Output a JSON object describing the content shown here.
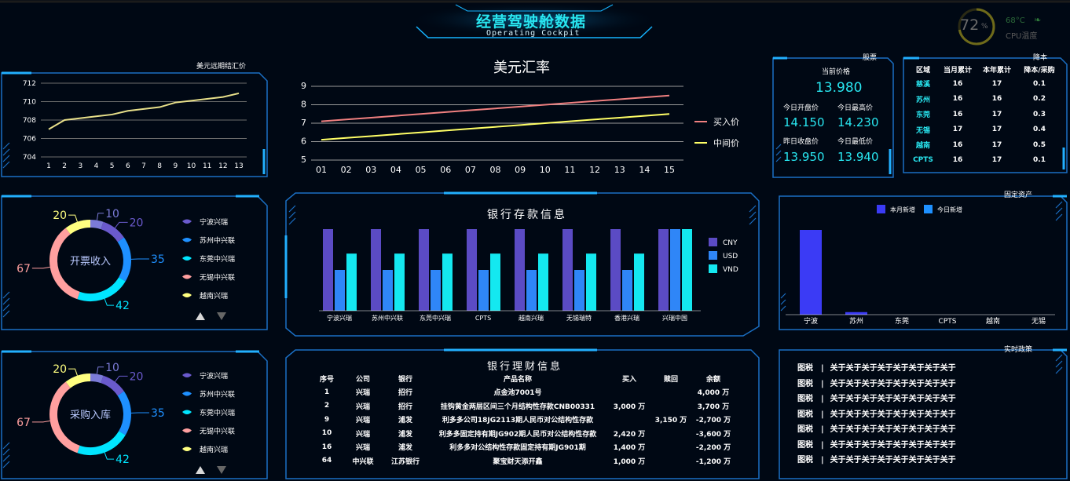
{
  "header": {
    "title": "经营驾驶舱数据",
    "subtitle": "Operating Cockpit"
  },
  "cpu": {
    "percent": "72",
    "percent_unit": "%",
    "temp": "68°C",
    "temp_label": "CPU温度",
    "level": 0.72
  },
  "panel_titles": {
    "forward": "美元远期结汇价",
    "stock": "股票",
    "reduce": "降本",
    "fixed_assets": "固定资产",
    "policy": "实时政策",
    "deposit": "银行存款信息",
    "wealth": "银行理财信息"
  },
  "chart_data": [
    {
      "id": "forward",
      "type": "line",
      "title": "美元远期结汇价",
      "x": [
        "1",
        "2",
        "3",
        "4",
        "5",
        "6",
        "7",
        "8",
        "9",
        "10",
        "11",
        "12",
        "13"
      ],
      "series": [
        {
          "values": [
            707.0,
            708.0,
            708.2,
            708.4,
            708.6,
            709.0,
            709.2,
            709.4,
            709.9,
            710.1,
            710.3,
            710.5,
            710.9
          ],
          "color": "#e8e08a"
        }
      ],
      "yticks": [
        704,
        706,
        708,
        710,
        712
      ],
      "ylim": [
        704,
        712
      ]
    },
    {
      "id": "usd",
      "type": "line",
      "title": "美元汇率",
      "x": [
        "01",
        "02",
        "03",
        "04",
        "05",
        "06",
        "07",
        "08",
        "09",
        "10",
        "11",
        "12",
        "13",
        "14",
        "15"
      ],
      "series": [
        {
          "name": "买入价",
          "values": [
            7.1,
            7.2,
            7.3,
            7.4,
            7.5,
            7.6,
            7.7,
            7.8,
            7.9,
            8.0,
            8.1,
            8.2,
            8.3,
            8.4,
            8.5
          ],
          "color": "#f08080"
        },
        {
          "name": "中间价",
          "values": [
            6.1,
            6.2,
            6.3,
            6.4,
            6.5,
            6.6,
            6.7,
            6.8,
            6.9,
            7.0,
            7.1,
            7.2,
            7.3,
            7.4,
            7.5
          ],
          "color": "#ffff66"
        }
      ],
      "yticks": [
        5,
        6,
        7,
        8,
        9
      ],
      "ylim": [
        5,
        9
      ]
    },
    {
      "id": "invoice",
      "type": "pie",
      "center_label": "开票收入",
      "slices": [
        {
          "name": "宁波兴瑞",
          "value": 20,
          "color": "#6a5acd"
        },
        {
          "name": "苏州中兴联",
          "value": 35,
          "color": "#1e90ff"
        },
        {
          "name": "东莞中兴瑞",
          "value": 42,
          "color": "#00e5ff"
        },
        {
          "name": "无锡中兴联",
          "value": 67,
          "color": "#ff9f9f"
        },
        {
          "name": "越南兴瑞",
          "value": 20,
          "color": "#ffff80"
        },
        {
          "name": "",
          "value": 10,
          "color": "#7b7bd8"
        }
      ]
    },
    {
      "id": "purchase",
      "type": "pie",
      "center_label": "采购入库",
      "slices": [
        {
          "name": "宁波兴瑞",
          "value": 20,
          "color": "#6a5acd"
        },
        {
          "name": "苏州中兴联",
          "value": 35,
          "color": "#1e90ff"
        },
        {
          "name": "东莞中兴瑞",
          "value": 42,
          "color": "#00e5ff"
        },
        {
          "name": "无锡中兴联",
          "value": 67,
          "color": "#ff9f9f"
        },
        {
          "name": "越南兴瑞",
          "value": 20,
          "color": "#ffff80"
        },
        {
          "name": "",
          "value": 10,
          "color": "#7b7bd8"
        }
      ]
    },
    {
      "id": "deposit",
      "type": "bar",
      "title": "银行存款信息",
      "categories": [
        "宁波兴瑞",
        "苏州中兴联",
        "东莞中兴瑞",
        "CPTS",
        "越南兴瑞",
        "无锡瑞特",
        "香港兴瑞",
        "兴瑞中国"
      ],
      "series": [
        {
          "name": "CNY",
          "values": [
            10,
            10,
            10,
            10,
            10,
            10,
            10,
            10
          ],
          "color": "#5b4bc4"
        },
        {
          "name": "USD",
          "values": [
            5,
            5,
            5,
            5,
            5,
            5,
            5,
            10
          ],
          "color": "#2f86f7"
        },
        {
          "name": "VND",
          "values": [
            7,
            7,
            7,
            7,
            7,
            7,
            7,
            10
          ],
          "color": "#14e8f0"
        }
      ],
      "ylim": [
        0,
        10
      ]
    },
    {
      "id": "fixed",
      "type": "bar",
      "title": "固定资产",
      "categories": [
        "宁波",
        "苏州",
        "东莞",
        "CPTS",
        "越南",
        "无锡"
      ],
      "series": [
        {
          "name": "本月新增",
          "values": [
            100,
            3,
            0,
            0,
            0,
            0
          ],
          "color": "#3b3bf5"
        },
        {
          "name": "今日新增",
          "values": [
            0,
            0,
            0,
            0,
            0,
            0
          ],
          "color": "#1e90ff"
        }
      ],
      "ylim": [
        0,
        100
      ]
    }
  ],
  "stock": {
    "current_label": "当前价格",
    "current_value": "13.980",
    "open_label": "今日开盘价",
    "open_value": "14.150",
    "high_label": "今日最高价",
    "high_value": "14.230",
    "prev_label": "昨日收盘价",
    "prev_value": "13.950",
    "low_label": "今日最低价",
    "low_value": "13.940"
  },
  "reduce_table": {
    "headers": [
      "区域",
      "当月累计",
      "本年累计",
      "降本/采购"
    ],
    "rows": [
      [
        "慈溪",
        "16",
        "17",
        "0.1"
      ],
      [
        "苏州",
        "16",
        "16",
        "0.2"
      ],
      [
        "东莞",
        "16",
        "17",
        "0.3"
      ],
      [
        "无锡",
        "17",
        "17",
        "0.4"
      ],
      [
        "越南",
        "16",
        "17",
        "0.5"
      ],
      [
        "CPTS",
        "16",
        "17",
        "0.1"
      ]
    ]
  },
  "wealth_table": {
    "headers": [
      "序号",
      "公司",
      "银行",
      "产品名称",
      "买入",
      "赎回",
      "余额"
    ],
    "rows": [
      [
        "1",
        "兴瑞",
        "招行",
        "点金池7001号",
        "",
        "",
        "4,000 万"
      ],
      [
        "2",
        "兴瑞",
        "招行",
        "挂钩黄金两层区间三个月结构性存款CNB00331",
        "3,000 万",
        "",
        "3,700 万"
      ],
      [
        "9",
        "兴瑞",
        "浦发",
        "利多多公司18JG2113期人民币对公结构性存款",
        "",
        "3,150 万",
        "-2,700 万"
      ],
      [
        "10",
        "兴瑞",
        "浦发",
        "利多多固定持有期JG902期人民币对公结构性存款",
        "2,420 万",
        "",
        "-3,600 万"
      ],
      [
        "16",
        "兴瑞",
        "浦发",
        "利多多对公结构性存款固定持有期JG901期",
        "1,400 万",
        "",
        "-2,200 万"
      ],
      [
        "64",
        "中兴联",
        "江苏银行",
        "聚宝财天添开鑫",
        "1,000 万",
        "",
        "-1,200 万"
      ]
    ]
  },
  "policy": {
    "rows": [
      {
        "tag": "图税",
        "sep": "|",
        "text": "关于关于关于关于关于关于关于关于"
      },
      {
        "tag": "图税",
        "sep": "|",
        "text": "关于关于关于关于关于关于关于关于"
      },
      {
        "tag": "图税",
        "sep": "|",
        "text": "关于关于关于关于关于关于关于关于"
      },
      {
        "tag": "图税",
        "sep": "|",
        "text": "关于关于关于关于关于关于关于关于"
      },
      {
        "tag": "图税",
        "sep": "|",
        "text": "关于关于关于关于关于关于关于关于"
      },
      {
        "tag": "图税",
        "sep": "|",
        "text": "关于关于关于关于关于关于关于关于"
      },
      {
        "tag": "图税",
        "sep": "|",
        "text": "关于关于关于关于关于关于关于关于"
      }
    ]
  }
}
